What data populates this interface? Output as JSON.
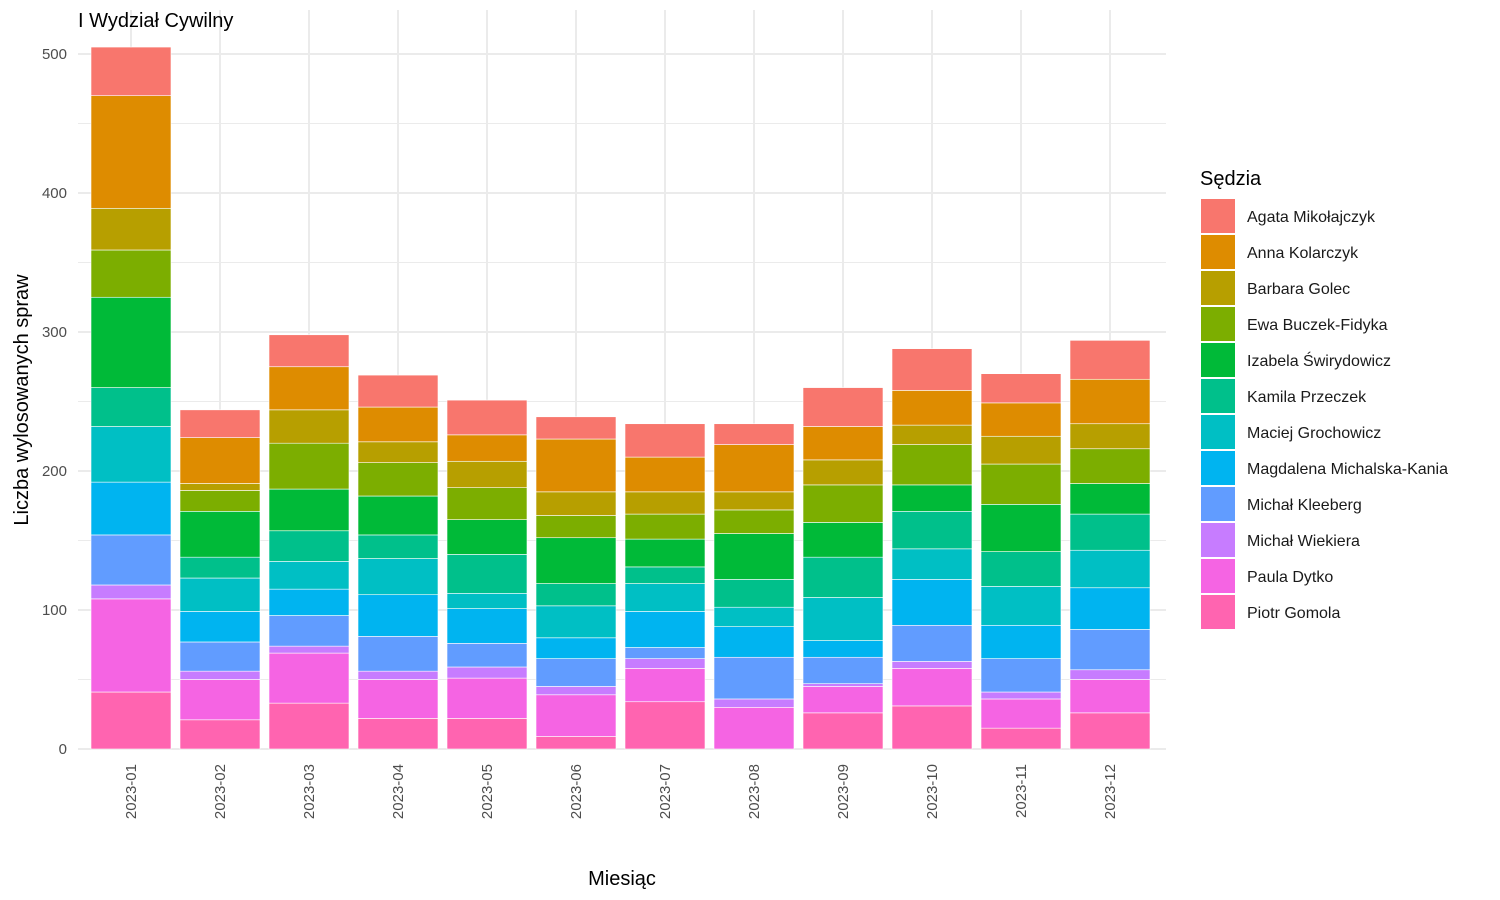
{
  "chart_data": {
    "type": "bar",
    "stacked": true,
    "title": "I Wydział Cywilny",
    "xlabel": "Miesiąc",
    "ylabel": "Liczba wylosowanych spraw",
    "ylim": [
      0,
      505
    ],
    "yticks": [
      0,
      100,
      200,
      300,
      400,
      500
    ],
    "grid": true,
    "legend": {
      "title": "Sędzia",
      "position": "right"
    },
    "categories": [
      "2023-01",
      "2023-02",
      "2023-03",
      "2023-04",
      "2023-05",
      "2023-06",
      "2023-07",
      "2023-08",
      "2023-09",
      "2023-10",
      "2023-11",
      "2023-12"
    ],
    "series": [
      {
        "name": "Agata Mikołajczyk",
        "color": "#F8766D",
        "values": [
          35,
          20,
          23,
          23,
          25,
          16,
          24,
          15,
          28,
          30,
          21,
          28
        ]
      },
      {
        "name": "Anna Kolarczyk",
        "color": "#DE8C00",
        "values": [
          81,
          33,
          31,
          25,
          19,
          38,
          25,
          34,
          24,
          25,
          24,
          32
        ]
      },
      {
        "name": "Barbara Golec",
        "color": "#B79F00",
        "values": [
          30,
          5,
          24,
          15,
          19,
          17,
          16,
          13,
          18,
          14,
          20,
          18
        ]
      },
      {
        "name": "Ewa Buczek-Fidyka",
        "color": "#7CAE00",
        "values": [
          34,
          15,
          33,
          24,
          23,
          16,
          18,
          17,
          27,
          29,
          29,
          25
        ]
      },
      {
        "name": "Izabela Świrydowicz",
        "color": "#00BA38",
        "values": [
          65,
          33,
          30,
          28,
          25,
          33,
          20,
          33,
          25,
          19,
          34,
          22
        ]
      },
      {
        "name": "Kamila Przeczek",
        "color": "#00C08B",
        "values": [
          28,
          15,
          22,
          17,
          28,
          16,
          12,
          20,
          29,
          27,
          25,
          26
        ]
      },
      {
        "name": "Maciej Grochowicz",
        "color": "#00BFC4",
        "values": [
          40,
          24,
          20,
          26,
          11,
          23,
          20,
          14,
          31,
          22,
          28,
          27
        ]
      },
      {
        "name": "Magdalena Michalska-Kania",
        "color": "#00B4F0",
        "values": [
          38,
          22,
          19,
          30,
          25,
          15,
          26,
          22,
          12,
          33,
          24,
          30
        ]
      },
      {
        "name": "Michał Kleeberg",
        "color": "#619CFF",
        "values": [
          36,
          21,
          22,
          25,
          17,
          20,
          8,
          30,
          19,
          26,
          24,
          29
        ]
      },
      {
        "name": "Michał Wiekiera",
        "color": "#C77CFF",
        "values": [
          10,
          6,
          5,
          6,
          8,
          6,
          7,
          6,
          2,
          5,
          5,
          7
        ]
      },
      {
        "name": "Paula Dytko",
        "color": "#F564E3",
        "values": [
          67,
          29,
          36,
          28,
          29,
          30,
          24,
          30,
          19,
          27,
          21,
          24
        ]
      },
      {
        "name": "Piotr Gomola",
        "color": "#FF64B0",
        "values": [
          41,
          21,
          33,
          22,
          22,
          9,
          34,
          0,
          26,
          31,
          15,
          26
        ]
      }
    ]
  }
}
